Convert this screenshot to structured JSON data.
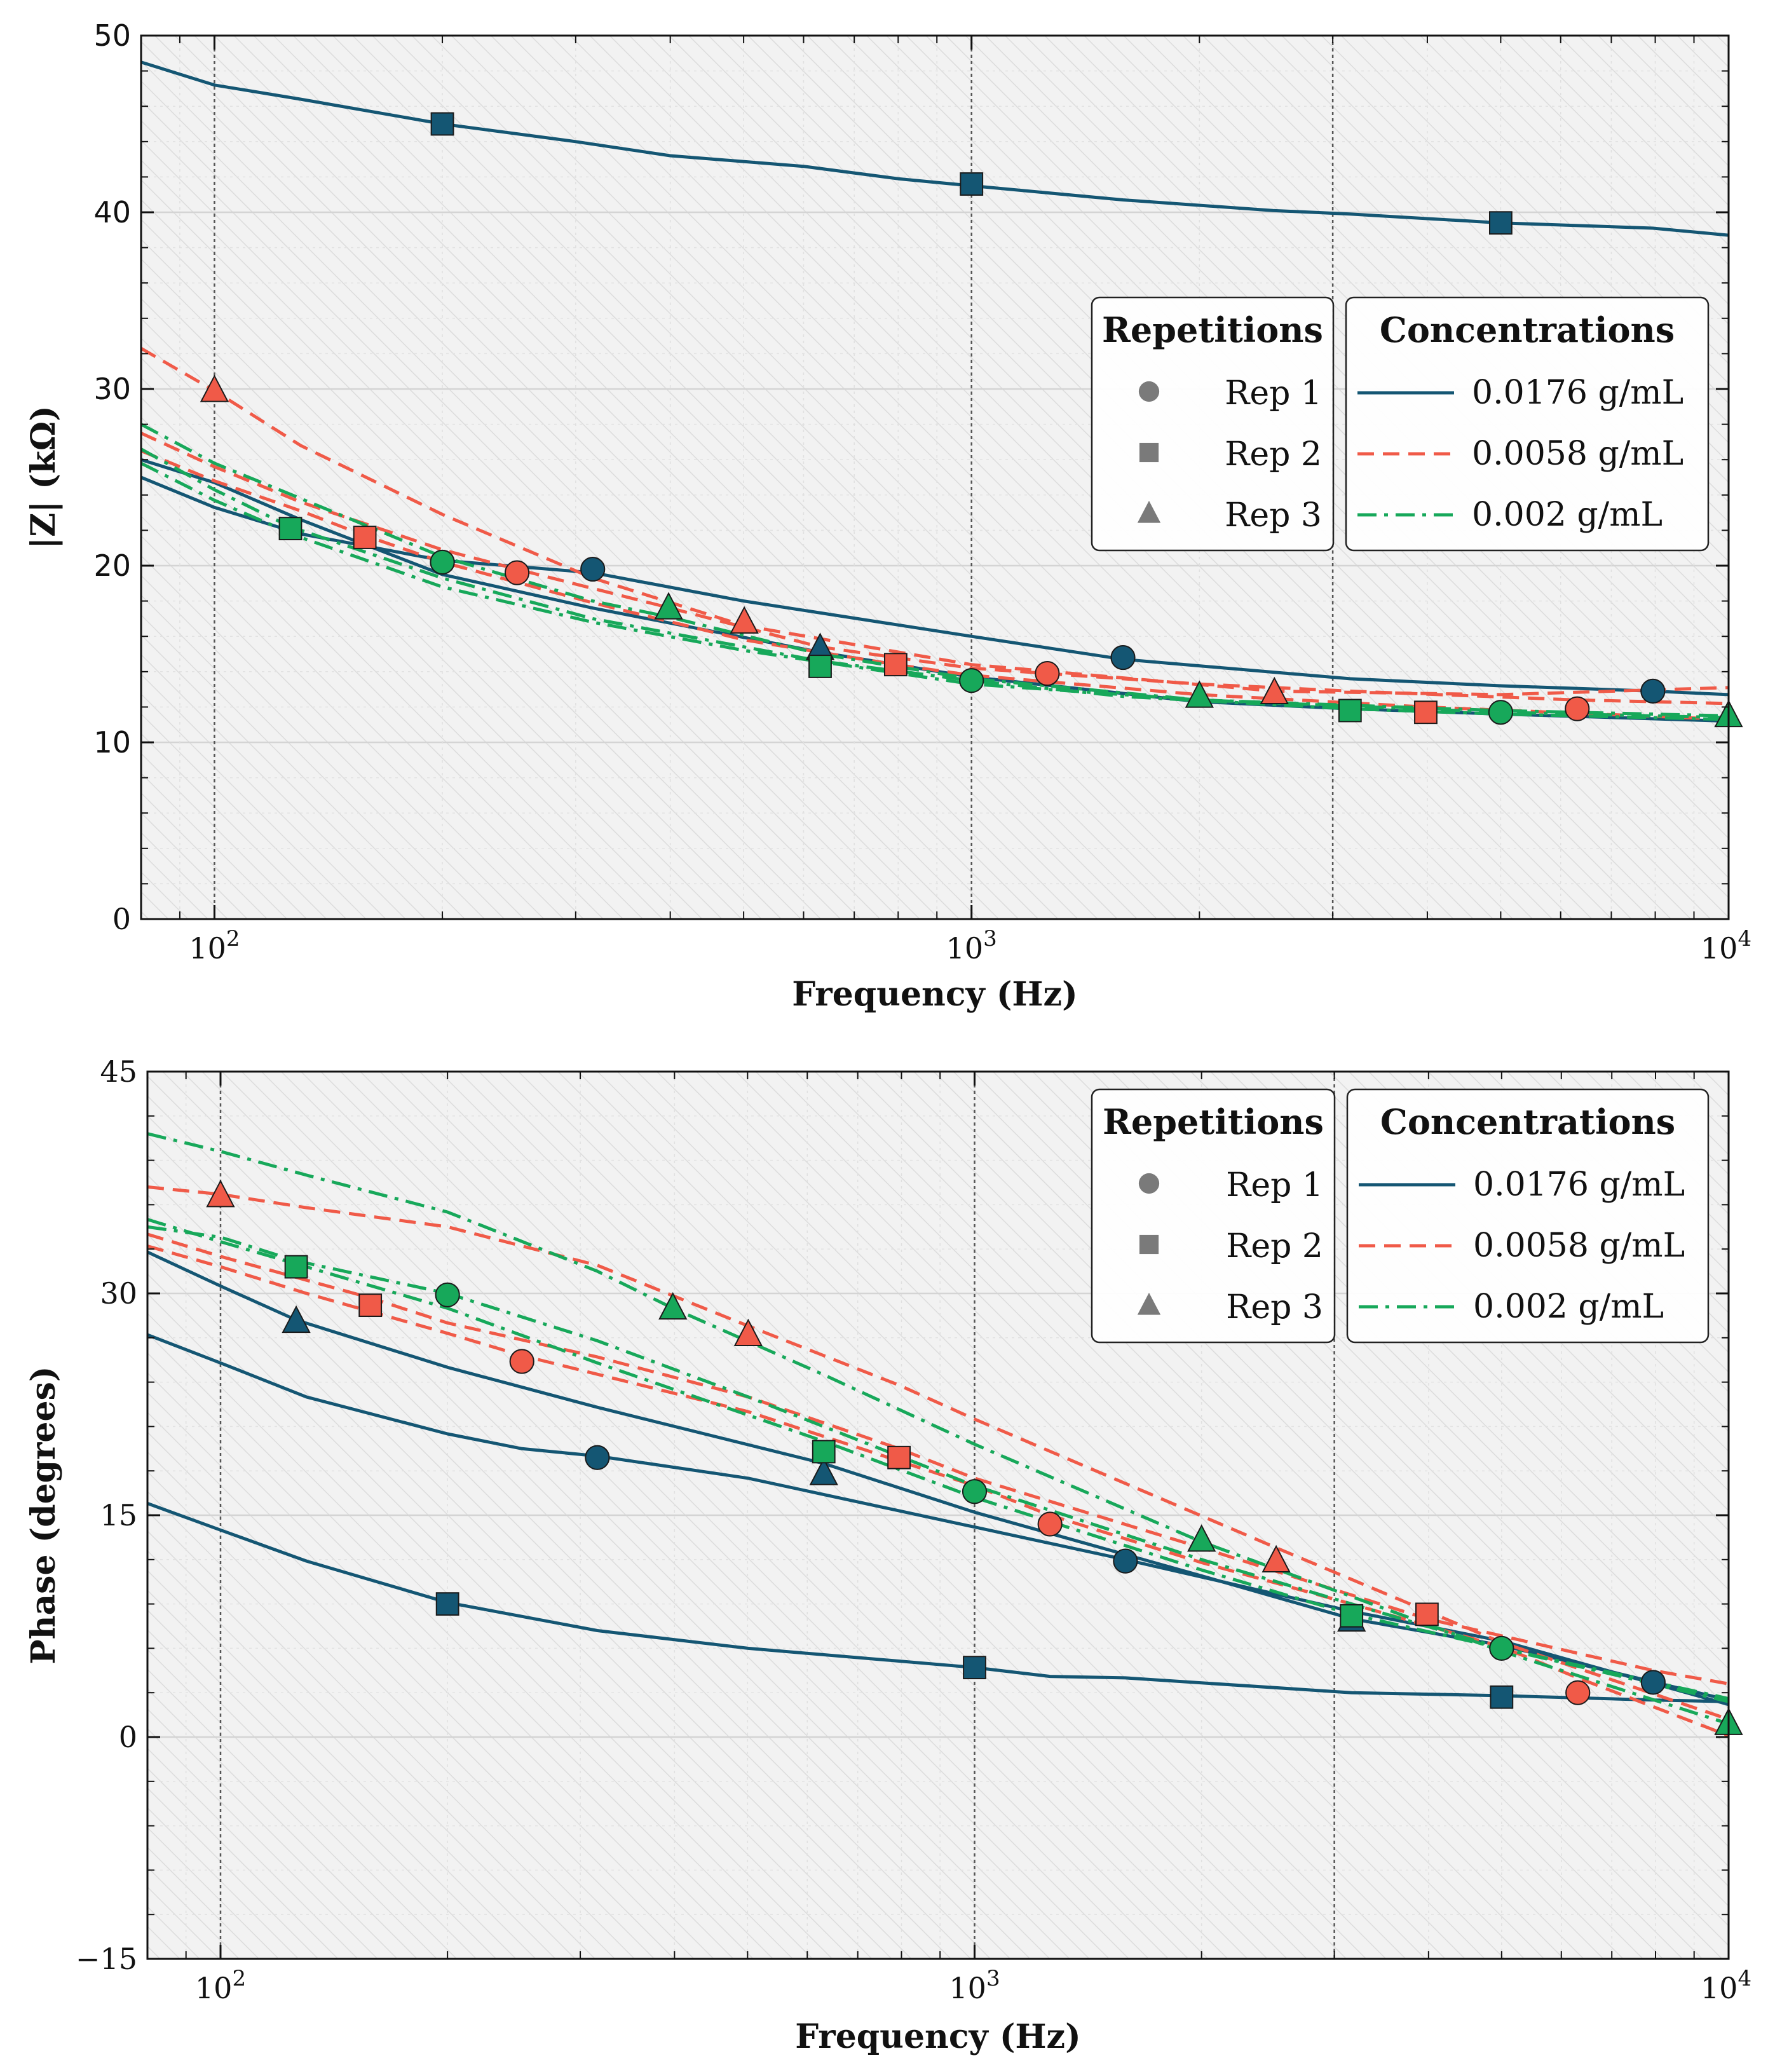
{
  "colors": {
    "c1": "#145673",
    "c2": "#f05a48",
    "c3": "#17a85a",
    "plot_bg": "#f2f2f2",
    "hatch": "#dcdcdc",
    "grid": "#d4d4d4",
    "marker_legend": "#7a7a7a"
  },
  "legend": {
    "repetitions_title": "Repetitions",
    "concentrations_title": "Concentrations",
    "rep_items": [
      {
        "label": "Rep 1",
        "marker": "circle"
      },
      {
        "label": "Rep 2",
        "marker": "square"
      },
      {
        "label": "Rep 3",
        "marker": "triangle"
      }
    ],
    "conc_items": [
      {
        "label": "0.0176 g/mL",
        "style": "solid",
        "color_key": "c1"
      },
      {
        "label": "0.0058 g/mL",
        "style": "dashed",
        "color_key": "c2"
      },
      {
        "label": "0.002 g/mL",
        "style": "dashdot",
        "color_key": "c3"
      }
    ]
  },
  "chart_data": [
    {
      "type": "line",
      "title": "",
      "xlabel": "Frequency (Hz)",
      "ylabel": "|Z| (kΩ)",
      "xscale": "log",
      "xlim": [
        80,
        10000
      ],
      "ylim": [
        0,
        50
      ],
      "yticks": [
        0,
        10,
        20,
        30,
        40,
        50
      ],
      "xticks": [
        {
          "value": 100,
          "base": "10",
          "exp": "2"
        },
        {
          "value": 1000,
          "base": "10",
          "exp": "3"
        },
        {
          "value": 10000,
          "base": "10",
          "exp": "4"
        }
      ],
      "vlines": [
        100,
        1000,
        3000
      ],
      "legend_position": "center-right",
      "series": [
        {
          "name": "0.0176 g/mL Rep 1",
          "conc": 0,
          "marker": "circle",
          "x": [
            80,
            100,
            130,
            200,
            316,
            500,
            1000,
            1585,
            3162,
            5000,
            7943,
            10000
          ],
          "y": [
            25.0,
            23.3,
            21.8,
            20.3,
            19.6,
            18.0,
            16.0,
            14.7,
            13.6,
            13.2,
            12.9,
            12.7
          ],
          "mx": [
            200,
            316,
            1585,
            7943
          ],
          "my": [
            20.2,
            19.8,
            14.8,
            12.9
          ]
        },
        {
          "name": "0.0176 g/mL Rep 2",
          "conc": 0,
          "marker": "square",
          "x": [
            80,
            100,
            130,
            200,
            300,
            400,
            600,
            800,
            1000,
            1585,
            2500,
            3162,
            5000,
            7943,
            10000
          ],
          "y": [
            48.5,
            47.2,
            46.4,
            45.0,
            44.0,
            43.2,
            42.6,
            41.9,
            41.5,
            40.7,
            40.1,
            39.9,
            39.4,
            39.1,
            38.7
          ],
          "mx": [
            200,
            1000,
            5000
          ],
          "my": [
            45.0,
            41.6,
            39.4
          ]
        },
        {
          "name": "0.0176 g/mL Rep 3",
          "conc": 0,
          "marker": "triangle",
          "x": [
            80,
            100,
            130,
            200,
            316,
            631,
            1000,
            2000,
            3162,
            5000,
            10000
          ],
          "y": [
            26.0,
            24.7,
            22.6,
            19.5,
            17.6,
            15.1,
            13.7,
            12.3,
            11.9,
            11.6,
            11.2
          ],
          "mx": [
            631
          ],
          "my": [
            15.3
          ]
        },
        {
          "name": "0.0058 g/mL Rep 1",
          "conc": 1,
          "marker": "circle",
          "x": [
            80,
            100,
            130,
            200,
            251,
            400,
            631,
            1000,
            1259,
            2000,
            3162,
            6310,
            10000
          ],
          "y": [
            27.5,
            25.6,
            23.6,
            20.9,
            19.8,
            17.6,
            15.4,
            14.2,
            13.9,
            13.3,
            12.9,
            12.4,
            12.2
          ],
          "mx": [
            251,
            1259,
            6310
          ],
          "my": [
            19.6,
            13.9,
            11.9
          ]
        },
        {
          "name": "0.0058 g/mL Rep 2",
          "conc": 1,
          "marker": "square",
          "x": [
            80,
            100,
            130,
            158,
            200,
            316,
            501,
            794,
            1000,
            2000,
            3981,
            10000
          ],
          "y": [
            26.5,
            24.8,
            23.1,
            21.7,
            20.2,
            17.9,
            15.8,
            14.4,
            13.8,
            12.7,
            12.0,
            11.3
          ],
          "mx": [
            158,
            794,
            3981
          ],
          "my": [
            21.6,
            14.4,
            11.7
          ]
        },
        {
          "name": "0.0058 g/mL Rep 3",
          "conc": 1,
          "marker": "triangle",
          "x": [
            80,
            100,
            130,
            200,
            316,
            501,
            1000,
            2512,
            5000,
            10000
          ],
          "y": [
            32.3,
            29.9,
            26.8,
            22.9,
            19.3,
            16.6,
            14.4,
            12.9,
            12.7,
            13.1
          ],
          "mx": [
            100,
            501,
            2512
          ],
          "my": [
            29.9,
            16.8,
            12.8
          ]
        },
        {
          "name": "0.002 g/mL Rep 1",
          "conc": 2,
          "marker": "circle",
          "x": [
            80,
            100,
            130,
            200,
            316,
            501,
            1000,
            2000,
            5000,
            10000
          ],
          "y": [
            25.8,
            23.7,
            21.6,
            18.8,
            16.8,
            15.2,
            13.3,
            12.4,
            11.7,
            11.4
          ],
          "mx": [
            200,
            1000,
            5000
          ],
          "my": [
            20.2,
            13.5,
            11.7
          ]
        },
        {
          "name": "0.002 g/mL Rep 2",
          "conc": 2,
          "marker": "square",
          "x": [
            80,
            100,
            126,
            200,
            316,
            631,
            1000,
            1585,
            3162,
            5000,
            10000
          ],
          "y": [
            26.6,
            24.3,
            22.2,
            19.3,
            17.0,
            14.6,
            13.5,
            12.6,
            11.9,
            11.6,
            11.3
          ],
          "mx": [
            126,
            631,
            3162
          ],
          "my": [
            22.1,
            14.3,
            11.8
          ]
        },
        {
          "name": "0.002 g/mL Rep 3",
          "conc": 2,
          "marker": "triangle",
          "x": [
            80,
            100,
            130,
            200,
            316,
            398,
            631,
            1000,
            2000,
            5000,
            10000
          ],
          "y": [
            28.0,
            25.8,
            23.8,
            20.5,
            18.0,
            17.1,
            15.0,
            13.6,
            12.4,
            11.8,
            11.5
          ],
          "mx": [
            398,
            2000,
            10000
          ],
          "my": [
            17.6,
            12.6,
            11.5
          ]
        }
      ]
    },
    {
      "type": "line",
      "title": "",
      "xlabel": "Frequency (Hz)",
      "ylabel": "Phase (degrees)",
      "xscale": "log",
      "xlim": [
        80,
        10000
      ],
      "ylim": [
        -15,
        45
      ],
      "yticks": [
        -15,
        0,
        15,
        30,
        45
      ],
      "ytick_labels": [
        "−15",
        "0",
        "15",
        "30",
        "45"
      ],
      "xticks": [
        {
          "value": 100,
          "base": "10",
          "exp": "2"
        },
        {
          "value": 1000,
          "base": "10",
          "exp": "3"
        },
        {
          "value": 10000,
          "base": "10",
          "exp": "4"
        }
      ],
      "vlines": [
        100,
        1000,
        3000
      ],
      "legend_position": "top-right",
      "series": [
        {
          "name": "0.0176 g/mL Rep 1",
          "conc": 0,
          "marker": "circle",
          "x": [
            80,
            100,
            130,
            200,
            251,
            316,
            501,
            1000,
            1585,
            3162,
            5000,
            10000
          ],
          "y": [
            27.2,
            25.3,
            23.0,
            20.5,
            19.5,
            19.0,
            17.5,
            14.2,
            12.0,
            8.5,
            6.5,
            2.2
          ],
          "mx": [
            316,
            1585,
            7943
          ],
          "my": [
            18.9,
            11.9,
            3.7
          ]
        },
        {
          "name": "0.0176 g/mL Rep 2",
          "conc": 0,
          "marker": "square",
          "x": [
            80,
            100,
            130,
            200,
            316,
            501,
            1000,
            1259,
            1585,
            3162,
            5000,
            7943,
            10000
          ],
          "y": [
            15.8,
            14.0,
            11.9,
            9.1,
            7.2,
            6.0,
            4.7,
            4.1,
            4.0,
            3.0,
            2.8,
            2.5,
            2.4
          ],
          "mx": [
            200,
            1000,
            5000
          ],
          "my": [
            9.0,
            4.7,
            2.7
          ]
        },
        {
          "name": "0.0176 g/mL Rep 3",
          "conc": 0,
          "marker": "triangle",
          "x": [
            80,
            100,
            126,
            200,
            316,
            631,
            1000,
            2000,
            3162,
            5000,
            10000
          ],
          "y": [
            32.8,
            30.5,
            28.2,
            25.0,
            22.3,
            18.5,
            15.2,
            10.9,
            8.0,
            6.2,
            2.5
          ],
          "mx": [
            126,
            631,
            3162
          ],
          "my": [
            28.1,
            17.8,
            7.9
          ]
        },
        {
          "name": "0.0058 g/mL Rep 1",
          "conc": 1,
          "marker": "circle",
          "x": [
            80,
            100,
            130,
            200,
            251,
            501,
            1000,
            1259,
            2000,
            3162,
            5000,
            6310,
            10000
          ],
          "y": [
            33.2,
            31.8,
            30.0,
            27.3,
            25.8,
            22.0,
            17.0,
            15.0,
            11.8,
            9.0,
            6.1,
            4.0,
            0.1
          ],
          "mx": [
            251,
            1259,
            6310
          ],
          "my": [
            25.4,
            14.4,
            3.0
          ]
        },
        {
          "name": "0.0058 g/mL Rep 2",
          "conc": 1,
          "marker": "square",
          "x": [
            80,
            100,
            158,
            200,
            316,
            501,
            794,
            1000,
            2000,
            3981,
            7943,
            10000
          ],
          "y": [
            34.0,
            32.5,
            29.7,
            28.0,
            25.7,
            23.0,
            19.5,
            17.5,
            12.8,
            8.0,
            4.5,
            3.6
          ],
          "mx": [
            158,
            794,
            3981
          ],
          "my": [
            29.2,
            18.9,
            8.3
          ]
        },
        {
          "name": "0.0058 g/mL Rep 3",
          "conc": 1,
          "marker": "triangle",
          "x": [
            80,
            100,
            130,
            200,
            316,
            501,
            794,
            1000,
            2512,
            5000,
            10000
          ],
          "y": [
            37.2,
            36.7,
            35.8,
            34.5,
            31.9,
            27.8,
            23.8,
            21.5,
            12.8,
            6.4,
            1.2
          ],
          "mx": [
            100,
            501,
            2512
          ],
          "my": [
            36.6,
            27.2,
            11.9
          ]
        },
        {
          "name": "0.002 g/mL Rep 1",
          "conc": 2,
          "marker": "circle",
          "x": [
            80,
            100,
            126,
            200,
            316,
            501,
            1000,
            2000,
            5000,
            10000
          ],
          "y": [
            34.5,
            33.8,
            32.2,
            30.0,
            26.8,
            23.0,
            17.0,
            12.0,
            6.0,
            2.6
          ],
          "mx": [
            200,
            1000,
            5000
          ],
          "my": [
            29.9,
            16.6,
            6.0
          ]
        },
        {
          "name": "0.002 g/mL Rep 2",
          "conc": 2,
          "marker": "square",
          "x": [
            80,
            100,
            126,
            200,
            316,
            631,
            1000,
            2000,
            3162,
            5000,
            10000
          ],
          "y": [
            35.0,
            33.5,
            32.0,
            29.0,
            25.3,
            20.0,
            16.2,
            11.3,
            8.3,
            6.0,
            2.4
          ],
          "mx": [
            126,
            631,
            3162
          ],
          "my": [
            31.8,
            19.3,
            8.2
          ]
        },
        {
          "name": "0.002 g/mL Rep 3",
          "conc": 2,
          "marker": "triangle",
          "x": [
            80,
            100,
            130,
            200,
            316,
            398,
            631,
            1000,
            2000,
            5000,
            10000
          ],
          "y": [
            40.8,
            39.6,
            38.0,
            35.5,
            31.5,
            29.0,
            24.5,
            19.8,
            13.2,
            5.8,
            0.9
          ],
          "mx": [
            398,
            2000,
            10000
          ],
          "my": [
            29.0,
            13.3,
            0.9
          ]
        }
      ]
    }
  ]
}
